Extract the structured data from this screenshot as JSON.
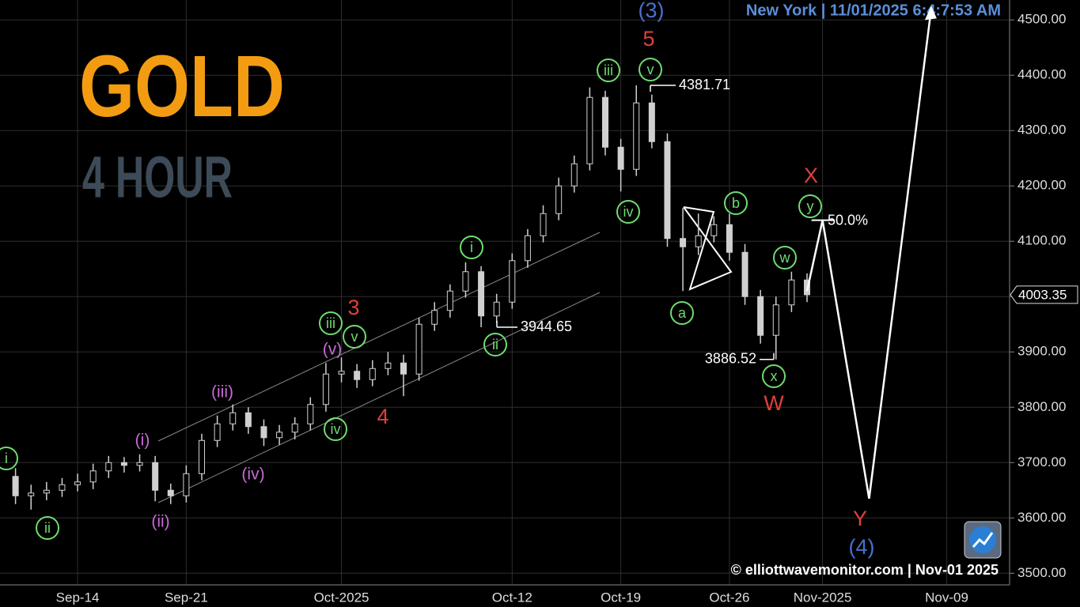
{
  "chart_data": {
    "type": "candlestick",
    "title": "GOLD",
    "subtitle": "4 HOUR",
    "header": "New York | 11/01/2025 6:4:7:53 AM",
    "footer": "© elliottwavemonitor.com | Nov-01 2025",
    "x": [
      "2025-09-10",
      "2025-09-11",
      "2025-09-12",
      "2025-09-13",
      "2025-09-14",
      "2025-09-15",
      "2025-09-16",
      "2025-09-17",
      "2025-09-18",
      "2025-09-19",
      "2025-09-20",
      "2025-09-21",
      "2025-09-22",
      "2025-09-23",
      "2025-09-24",
      "2025-09-25",
      "2025-09-26",
      "2025-09-27",
      "2025-09-28",
      "2025-09-29",
      "2025-09-30",
      "2025-10-01",
      "2025-10-02",
      "2025-10-03",
      "2025-10-04",
      "2025-10-05",
      "2025-10-06",
      "2025-10-07",
      "2025-10-08",
      "2025-10-09",
      "2025-10-10",
      "2025-10-11",
      "2025-10-12",
      "2025-10-13",
      "2025-10-14",
      "2025-10-15",
      "2025-10-16",
      "2025-10-17",
      "2025-10-18",
      "2025-10-19",
      "2025-10-20",
      "2025-10-21",
      "2025-10-22",
      "2025-10-23",
      "2025-10-24",
      "2025-10-25",
      "2025-10-26",
      "2025-10-27",
      "2025-10-28",
      "2025-10-29",
      "2025-10-30",
      "2025-10-31"
    ],
    "open": [
      3675,
      3640,
      3645,
      3650,
      3660,
      3665,
      3685,
      3700,
      3695,
      3700,
      3650,
      3640,
      3680,
      3740,
      3770,
      3790,
      3765,
      3745,
      3755,
      3770,
      3805,
      3860,
      3865,
      3850,
      3870,
      3880,
      3860,
      3950,
      3975,
      4010,
      4045,
      3965,
      3990,
      4065,
      4110,
      4150,
      4200,
      4240,
      4360,
      4270,
      4230,
      4350,
      4280,
      4105,
      4090,
      4110,
      4130,
      4080,
      4000,
      3930,
      3985,
      4030
    ],
    "high": [
      3690,
      3660,
      3665,
      3672,
      3680,
      3698,
      3712,
      3710,
      3715,
      3712,
      3662,
      3695,
      3752,
      3785,
      3805,
      3800,
      3778,
      3768,
      3782,
      3818,
      3880,
      3890,
      3878,
      3885,
      3900,
      3895,
      3962,
      3990,
      4022,
      4062,
      4055,
      4005,
      4078,
      4122,
      4165,
      4215,
      4255,
      4378,
      4372,
      4285,
      4381.71,
      4365,
      4295,
      4160,
      4150,
      4145,
      4150,
      4095,
      4012,
      4000,
      4045,
      4042
    ],
    "low": [
      3625,
      3615,
      3632,
      3638,
      3648,
      3652,
      3672,
      3682,
      3684,
      3630,
      3625,
      3628,
      3668,
      3728,
      3758,
      3752,
      3730,
      3732,
      3742,
      3758,
      3792,
      3845,
      3835,
      3838,
      3858,
      3820,
      3848,
      3938,
      3962,
      3998,
      3944.65,
      3952,
      3978,
      4052,
      4098,
      4138,
      4188,
      4228,
      4255,
      4190,
      4218,
      4268,
      4090,
      4010,
      4075,
      4098,
      4065,
      3985,
      3915,
      3886.52,
      3972,
      3990
    ],
    "close": [
      3640,
      3645,
      3650,
      3660,
      3665,
      3685,
      3700,
      3695,
      3700,
      3650,
      3640,
      3680,
      3740,
      3770,
      3790,
      3765,
      3745,
      3755,
      3770,
      3805,
      3860,
      3865,
      3850,
      3870,
      3880,
      3860,
      3950,
      3975,
      4010,
      4045,
      3965,
      3990,
      4065,
      4110,
      4150,
      4200,
      4240,
      4360,
      4270,
      4230,
      4350,
      4280,
      4105,
      4090,
      4110,
      4130,
      4080,
      4000,
      3930,
      3985,
      4030,
      4003.35
    ],
    "color": "#d0d0d0",
    "forecast": {
      "x": [
        "2025-10-31",
        "2025-11-01",
        "2025-11-04",
        "2025-11-08"
      ],
      "values": [
        4010,
        4138,
        3635,
        4520
      ]
    },
    "price_labels": [
      4381.71,
      3944.65,
      3886.52
    ],
    "retracement": {
      "value": 50,
      "label": "50.0%"
    },
    "last_price": 4003.35,
    "annotations": [
      "i",
      "ii",
      "(i)",
      "(ii)",
      "(iii)",
      "(iv)",
      "(v)",
      "iii",
      "v",
      "3",
      "iv",
      "4",
      "i",
      "ii",
      "iii",
      "v",
      "5",
      "(3)",
      "iv",
      "a",
      "b",
      "x",
      "W",
      "w",
      "y",
      "X",
      "Y",
      "(4)"
    ],
    "xlim": [
      "2025-09-09",
      "2025-11-13"
    ],
    "xticks": [
      {
        "value": "2025-09-14",
        "label": "Sep-14"
      },
      {
        "value": "2025-09-21",
        "label": "Sep-21"
      },
      {
        "value": "2025-10-01",
        "label": "Oct-2025"
      },
      {
        "value": "2025-10-12",
        "label": "Oct-12"
      },
      {
        "value": "2025-10-19",
        "label": "Oct-19"
      },
      {
        "value": "2025-10-26",
        "label": "Oct-26"
      },
      {
        "value": "2025-11-01",
        "label": "Nov-2025"
      },
      {
        "value": "2025-11-09",
        "label": "Nov-09"
      }
    ],
    "ylim": [
      3479,
      4536
    ],
    "yticks": [
      {
        "value": 3500,
        "label": "3500.00"
      },
      {
        "value": 3600,
        "label": "3600.00"
      },
      {
        "value": 3700,
        "label": "3700.00"
      },
      {
        "value": 3800,
        "label": "3800.00"
      },
      {
        "value": 3900,
        "label": "3900.00"
      },
      {
        "value": 4000,
        "label": "4000.00"
      },
      {
        "value": 4100,
        "label": "4100.00"
      },
      {
        "value": 4200,
        "label": "4200.00"
      },
      {
        "value": 4300,
        "label": "4300.00"
      },
      {
        "value": 4400,
        "label": "4400.00"
      },
      {
        "value": 4500,
        "label": "4500.00"
      }
    ],
    "grid": true
  }
}
